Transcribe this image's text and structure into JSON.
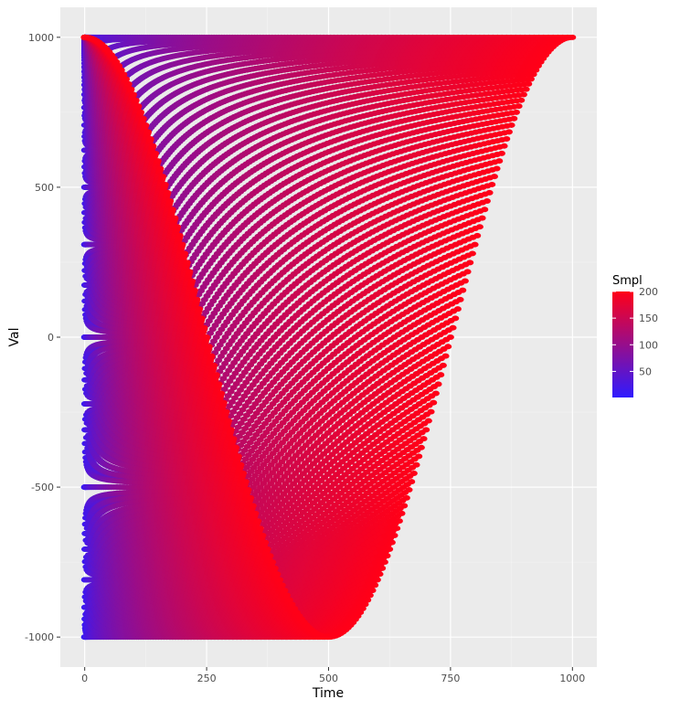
{
  "chart_data": {
    "type": "scatter",
    "title": "",
    "xlabel": "Time",
    "ylabel": "Val",
    "xlim": [
      -50,
      1050
    ],
    "ylim": [
      -1100,
      1100
    ],
    "x_ticks": [
      0,
      250,
      500,
      750,
      1000
    ],
    "y_ticks": [
      -1000,
      -500,
      0,
      500,
      1000
    ],
    "x_tick_labels": [
      "0",
      "250",
      "500",
      "750",
      "1000"
    ],
    "y_tick_labels": [
      "-1000",
      "-500",
      "0",
      "500",
      "1000"
    ],
    "grid": true,
    "legend": {
      "title": "Smpl",
      "position": "right",
      "range": [
        1,
        200
      ],
      "ticks": [
        50,
        100,
        150,
        200
      ],
      "tick_labels": [
        "50",
        "100",
        "150",
        "200"
      ],
      "color_low": "#2f1bff",
      "color_high": "#ff0018"
    },
    "series": [
      {
        "encoding": "Each Smpl k (1..200) traces Val = 1000*cos(2*pi*j/k) at Time = j*k/40 for j = 0..k; points colored by Smpl",
        "smpl_min": 1,
        "smpl_max": 200,
        "samples_per_smpl": "k+1",
        "time_step_factor": 0.025
      }
    ]
  },
  "colors": {
    "panel_bg": "#ebebeb",
    "grid_major": "#ffffff",
    "grid_minor": "#f5f5f5",
    "axis_text": "#4d4d4d"
  }
}
